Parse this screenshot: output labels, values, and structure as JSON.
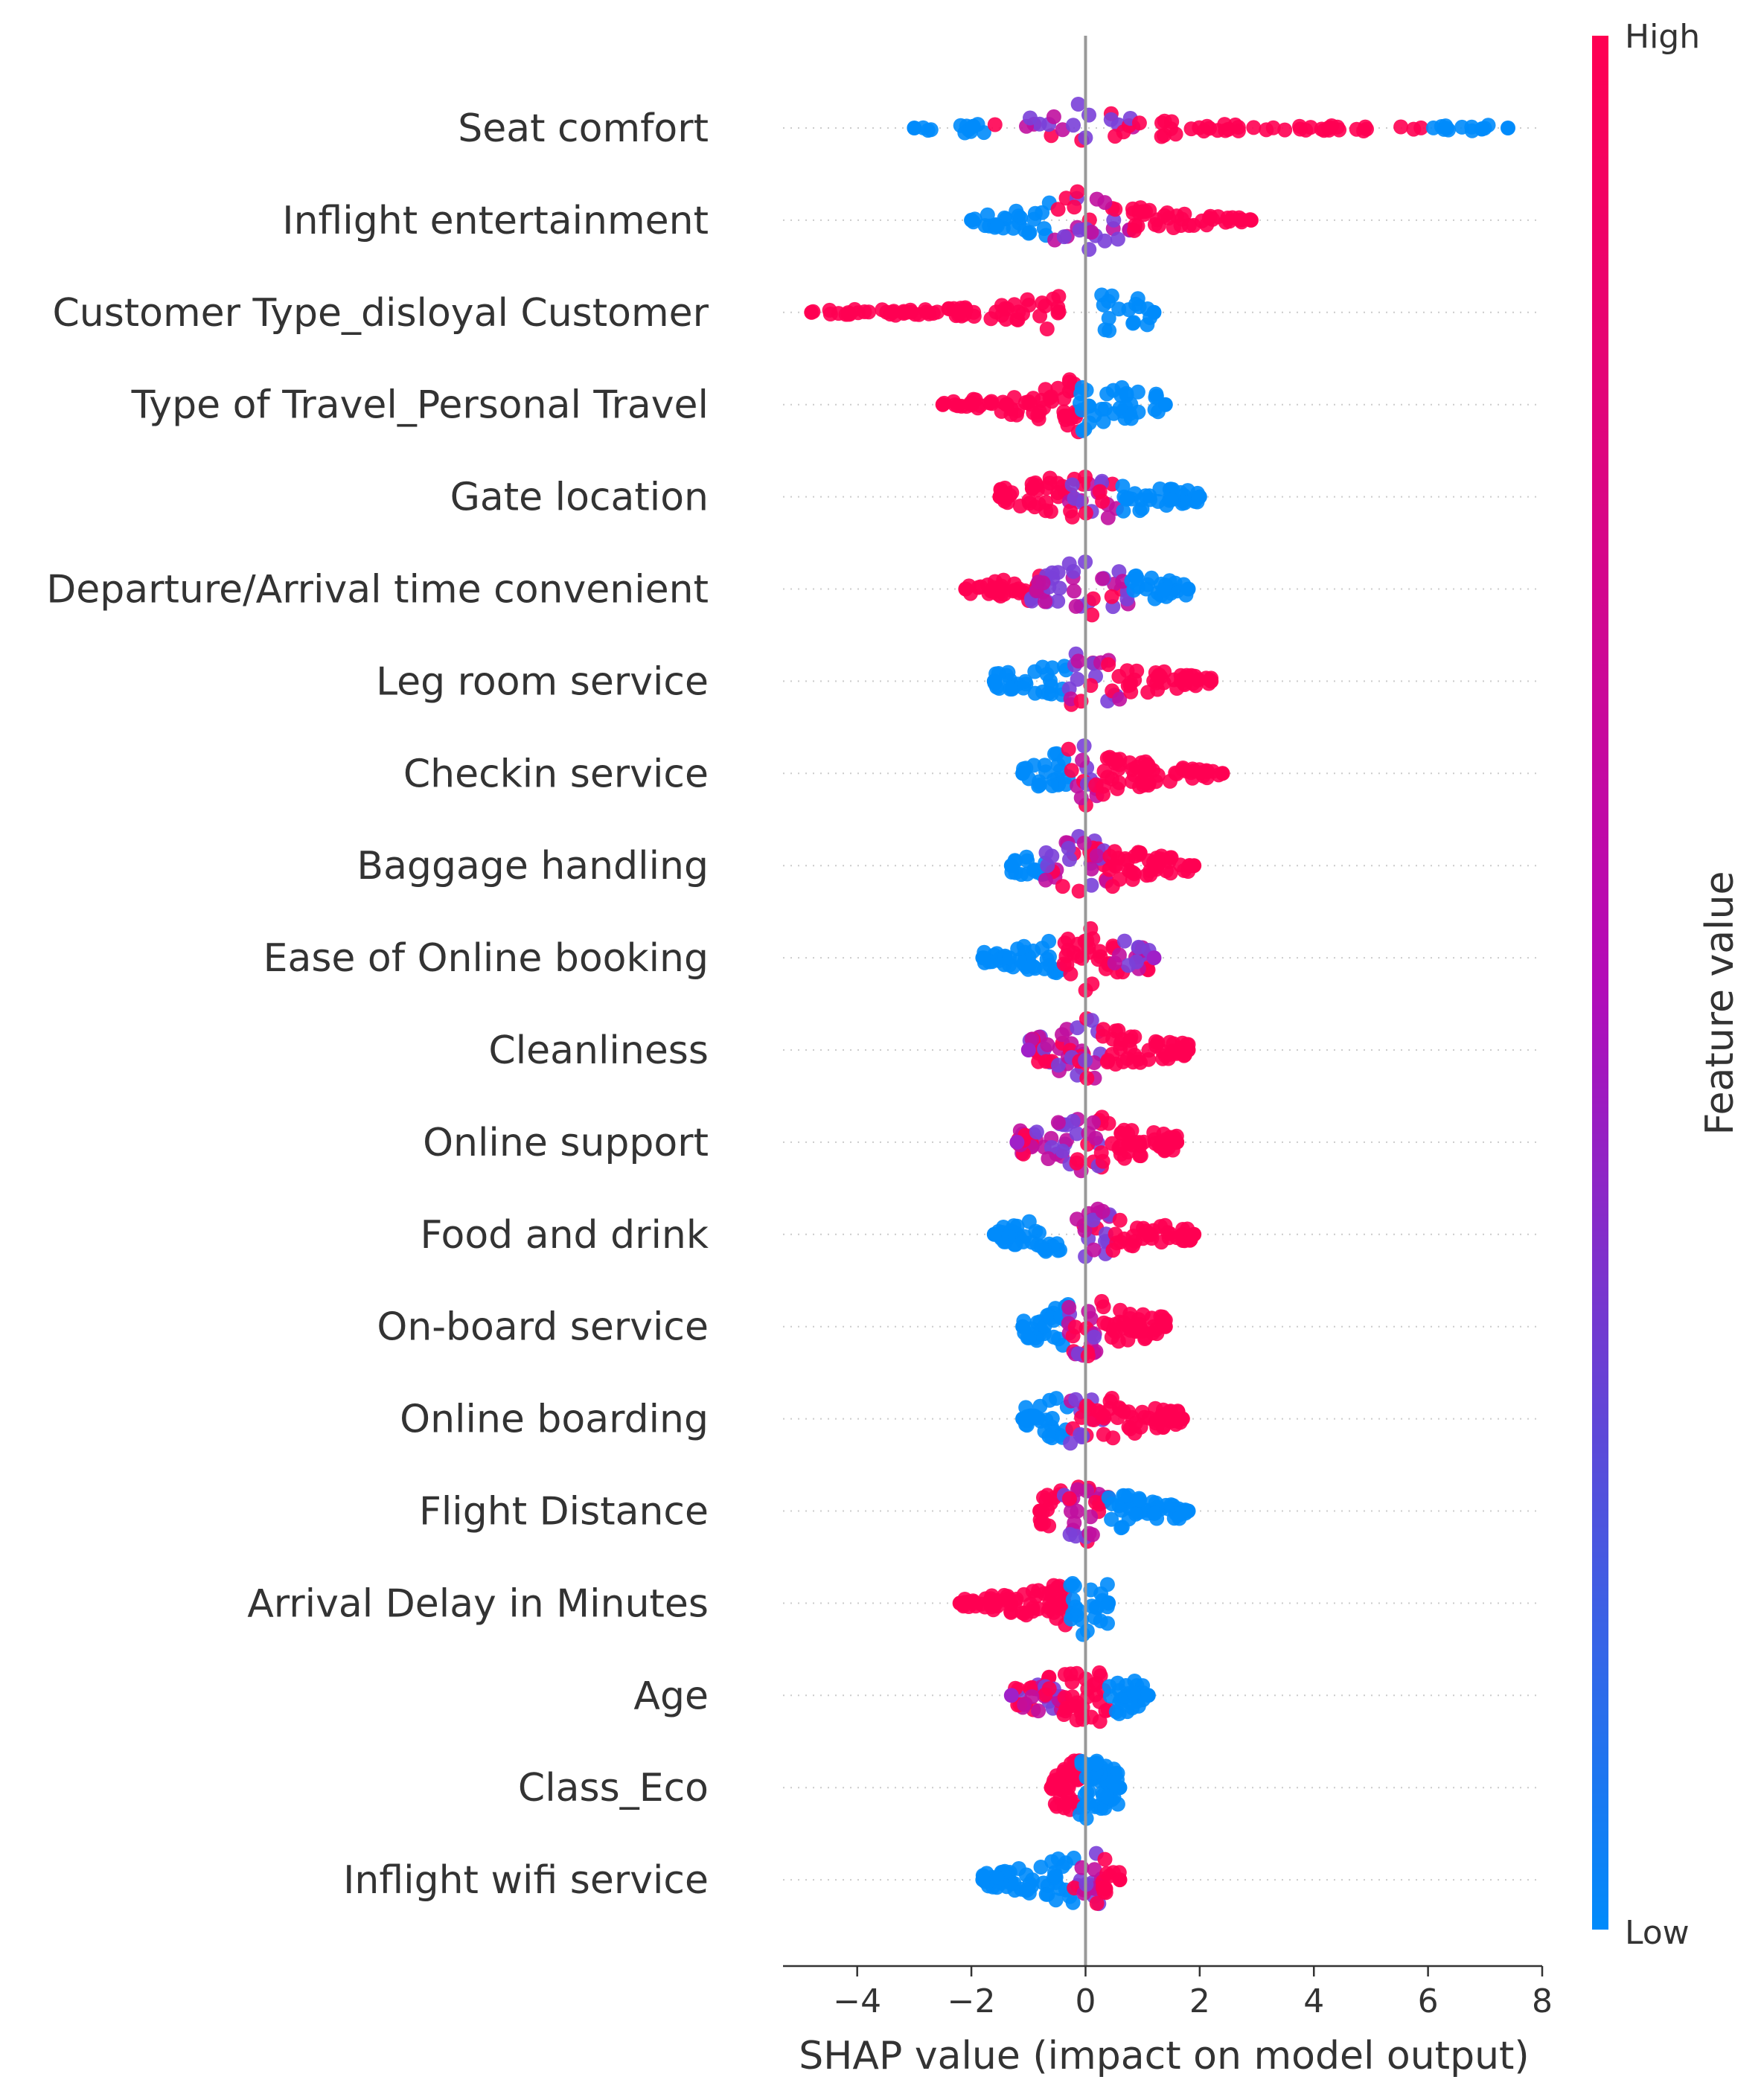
{
  "chart_data": {
    "type": "scatter",
    "subtype": "beeswarm",
    "title": "",
    "xlabel": "SHAP value (impact on model output)",
    "xlim": [
      -5.3,
      8.0
    ],
    "xticks": [
      {
        "value": -4,
        "label": "−4"
      },
      {
        "value": -2,
        "label": "−2"
      },
      {
        "value": 0,
        "label": "0"
      },
      {
        "value": 2,
        "label": "2"
      },
      {
        "value": 4,
        "label": "4"
      },
      {
        "value": 6,
        "label": "6"
      },
      {
        "value": 8,
        "label": "8"
      }
    ],
    "colorbar": {
      "label": "Feature value",
      "high_label": "High",
      "low_label": "Low",
      "high_color": "#ff0052",
      "low_color": "#008bfb"
    },
    "features": [
      {
        "name": "Seat comfort",
        "min": -3.0,
        "max": 7.4,
        "segments": [
          {
            "from": -3.0,
            "to": -1.6,
            "color": "low"
          },
          {
            "from": -1.6,
            "to": 0.9,
            "color": "mid"
          },
          {
            "from": 0.9,
            "to": 5.9,
            "color": "high"
          },
          {
            "from": 5.9,
            "to": 7.4,
            "color": "low"
          }
        ]
      },
      {
        "name": "Inflight entertainment",
        "min": -2.0,
        "max": 2.9,
        "segments": [
          {
            "from": -2.0,
            "to": -0.6,
            "color": "low"
          },
          {
            "from": -0.6,
            "to": 0.8,
            "color": "mid"
          },
          {
            "from": 0.8,
            "to": 2.9,
            "color": "high"
          }
        ]
      },
      {
        "name": "Customer Type_disloyal Customer",
        "min": -4.8,
        "max": 1.2,
        "segments": [
          {
            "from": -4.8,
            "to": -0.3,
            "color": "high"
          },
          {
            "from": 0.1,
            "to": 1.2,
            "color": "low"
          }
        ]
      },
      {
        "name": "Type of Travel_Personal Travel",
        "min": -2.5,
        "max": 1.4,
        "segments": [
          {
            "from": -2.5,
            "to": -0.1,
            "color": "high"
          },
          {
            "from": -0.1,
            "to": 1.4,
            "color": "low"
          }
        ]
      },
      {
        "name": "Gate location",
        "min": -1.5,
        "max": 2.0,
        "segments": [
          {
            "from": -1.5,
            "to": -0.3,
            "color": "high"
          },
          {
            "from": -0.3,
            "to": 0.6,
            "color": "mid"
          },
          {
            "from": 0.6,
            "to": 2.0,
            "color": "low"
          }
        ]
      },
      {
        "name": "Departure/Arrival time convenient",
        "min": -2.1,
        "max": 1.8,
        "segments": [
          {
            "from": -2.1,
            "to": -1.0,
            "color": "high"
          },
          {
            "from": -1.0,
            "to": 0.8,
            "color": "mid"
          },
          {
            "from": 0.8,
            "to": 1.8,
            "color": "low"
          }
        ]
      },
      {
        "name": "Leg room service",
        "min": -1.6,
        "max": 2.2,
        "segments": [
          {
            "from": -1.6,
            "to": -0.3,
            "color": "low"
          },
          {
            "from": -0.3,
            "to": 0.6,
            "color": "mid"
          },
          {
            "from": 0.6,
            "to": 2.2,
            "color": "high"
          }
        ]
      },
      {
        "name": "Checkin service",
        "min": -1.1,
        "max": 2.4,
        "segments": [
          {
            "from": -1.1,
            "to": -0.3,
            "color": "low"
          },
          {
            "from": -0.3,
            "to": 0.3,
            "color": "mid"
          },
          {
            "from": 0.3,
            "to": 2.4,
            "color": "high"
          }
        ]
      },
      {
        "name": "Baggage handling",
        "min": -1.3,
        "max": 1.9,
        "segments": [
          {
            "from": -1.3,
            "to": -0.7,
            "color": "low"
          },
          {
            "from": -0.7,
            "to": 0.4,
            "color": "mid"
          },
          {
            "from": 0.4,
            "to": 1.9,
            "color": "high"
          }
        ]
      },
      {
        "name": "Ease of Online booking",
        "min": -1.8,
        "max": 1.2,
        "segments": [
          {
            "from": -1.8,
            "to": -0.4,
            "color": "low"
          },
          {
            "from": -0.4,
            "to": 0.5,
            "color": "high"
          },
          {
            "from": 0.5,
            "to": 1.2,
            "color": "mid"
          }
        ]
      },
      {
        "name": "Cleanliness",
        "min": -1.0,
        "max": 1.8,
        "segments": [
          {
            "from": -1.0,
            "to": -0.3,
            "color": "mid"
          },
          {
            "from": -0.3,
            "to": 0.3,
            "color": "mid"
          },
          {
            "from": 0.3,
            "to": 1.8,
            "color": "high"
          }
        ]
      },
      {
        "name": "Online support",
        "min": -1.2,
        "max": 1.6,
        "segments": [
          {
            "from": -1.2,
            "to": -0.3,
            "color": "mid"
          },
          {
            "from": -0.3,
            "to": 0.3,
            "color": "mid"
          },
          {
            "from": 0.3,
            "to": 1.6,
            "color": "high"
          }
        ]
      },
      {
        "name": "Food and drink",
        "min": -1.6,
        "max": 1.9,
        "segments": [
          {
            "from": -1.6,
            "to": -0.3,
            "color": "low"
          },
          {
            "from": -0.3,
            "to": 0.5,
            "color": "mid"
          },
          {
            "from": 0.5,
            "to": 1.9,
            "color": "high"
          }
        ]
      },
      {
        "name": "On-board service",
        "min": -1.1,
        "max": 1.4,
        "segments": [
          {
            "from": -1.1,
            "to": -0.3,
            "color": "low"
          },
          {
            "from": -0.3,
            "to": 0.3,
            "color": "mid"
          },
          {
            "from": 0.3,
            "to": 1.4,
            "color": "high"
          }
        ]
      },
      {
        "name": "Online boarding",
        "min": -1.1,
        "max": 1.7,
        "segments": [
          {
            "from": -1.1,
            "to": -0.3,
            "color": "low"
          },
          {
            "from": -0.3,
            "to": 0.3,
            "color": "mid"
          },
          {
            "from": 0.3,
            "to": 1.7,
            "color": "high"
          }
        ]
      },
      {
        "name": "Flight Distance",
        "min": -0.8,
        "max": 1.8,
        "segments": [
          {
            "from": -0.8,
            "to": -0.4,
            "color": "high"
          },
          {
            "from": -0.4,
            "to": 0.4,
            "color": "mid"
          },
          {
            "from": 0.4,
            "to": 1.8,
            "color": "low"
          }
        ]
      },
      {
        "name": "Arrival Delay in Minutes",
        "min": -2.2,
        "max": 0.4,
        "segments": [
          {
            "from": -2.2,
            "to": -0.3,
            "color": "high"
          },
          {
            "from": -0.3,
            "to": 0.4,
            "color": "low"
          }
        ]
      },
      {
        "name": "Age",
        "min": -1.3,
        "max": 1.1,
        "segments": [
          {
            "from": -1.3,
            "to": -0.4,
            "color": "mid"
          },
          {
            "from": -0.4,
            "to": 0.4,
            "color": "high"
          },
          {
            "from": 0.4,
            "to": 1.1,
            "color": "low"
          }
        ]
      },
      {
        "name": "Class_Eco",
        "min": -0.6,
        "max": 0.6,
        "segments": [
          {
            "from": -0.6,
            "to": -0.1,
            "color": "high"
          },
          {
            "from": -0.1,
            "to": 0.6,
            "color": "low"
          }
        ]
      },
      {
        "name": "Inflight wifi service",
        "min": -1.8,
        "max": 0.6,
        "segments": [
          {
            "from": -1.8,
            "to": -0.2,
            "color": "low"
          },
          {
            "from": -0.2,
            "to": 0.3,
            "color": "mid"
          },
          {
            "from": 0.3,
            "to": 0.6,
            "color": "high"
          }
        ]
      }
    ]
  }
}
